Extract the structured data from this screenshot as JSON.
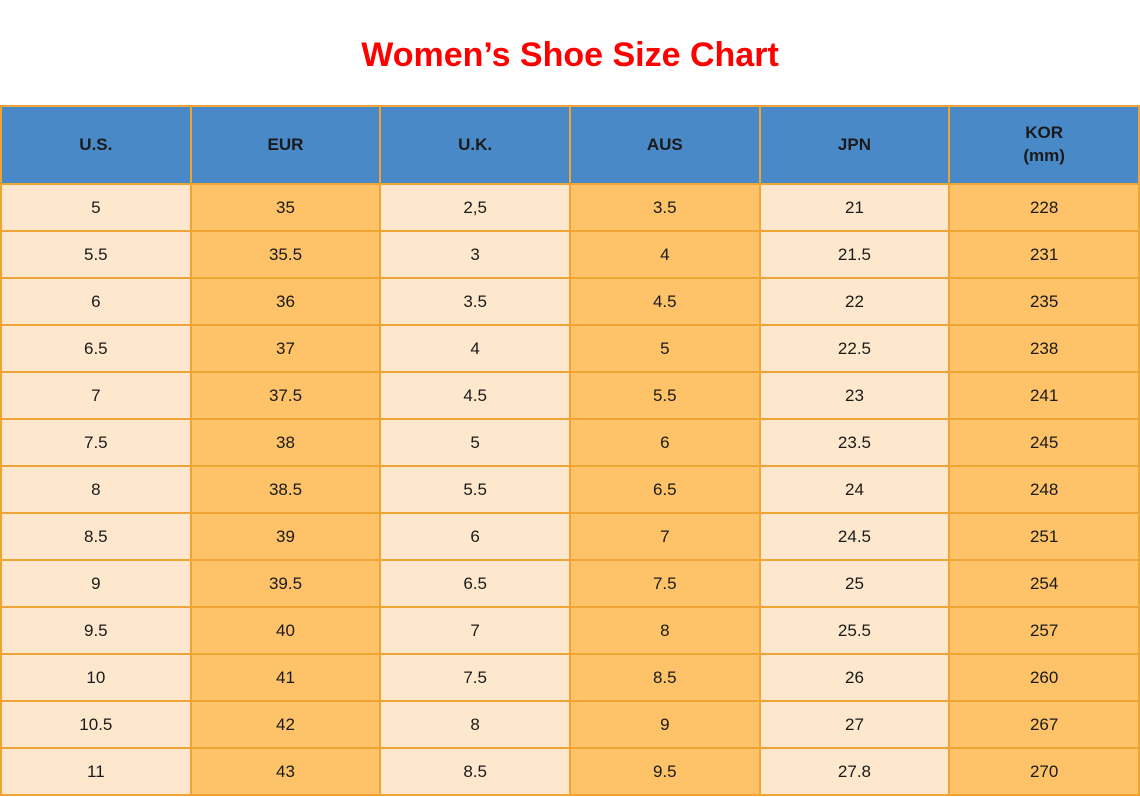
{
  "title": "Women’s Shoe Size Chart",
  "colors": {
    "title_red": "#FF0000",
    "header_blue": "#4A89C8",
    "border_orange": "#F0A434",
    "cell_cream": "#FDE8CD",
    "cell_orange": "#FEC269",
    "text": "#1A1A1A"
  },
  "chart_data": {
    "type": "table",
    "title": "Women’s Shoe Size Chart",
    "columns": [
      {
        "label": "U.S."
      },
      {
        "label": "EUR"
      },
      {
        "label": "U.K."
      },
      {
        "label": "AUS"
      },
      {
        "label": "JPN"
      },
      {
        "label": "KOR",
        "sublabel": "(mm)"
      }
    ],
    "rows": [
      [
        "5",
        "35",
        "2,5",
        "3.5",
        "21",
        "228"
      ],
      [
        "5.5",
        "35.5",
        "3",
        "4",
        "21.5",
        "231"
      ],
      [
        "6",
        "36",
        "3.5",
        "4.5",
        "22",
        "235"
      ],
      [
        "6.5",
        "37",
        "4",
        "5",
        "22.5",
        "238"
      ],
      [
        "7",
        "37.5",
        "4.5",
        "5.5",
        "23",
        "241"
      ],
      [
        "7.5",
        "38",
        "5",
        "6",
        "23.5",
        "245"
      ],
      [
        "8",
        "38.5",
        "5.5",
        "6.5",
        "24",
        "248"
      ],
      [
        "8.5",
        "39",
        "6",
        "7",
        "24.5",
        "251"
      ],
      [
        "9",
        "39.5",
        "6.5",
        "7.5",
        "25",
        "254"
      ],
      [
        "9.5",
        "40",
        "7",
        "8",
        "25.5",
        "257"
      ],
      [
        "10",
        "41",
        "7.5",
        "8.5",
        "26",
        "260"
      ],
      [
        "10.5",
        "42",
        "8",
        "9",
        "27",
        "267"
      ],
      [
        "11",
        "43",
        "8.5",
        "9.5",
        "27.8",
        "270"
      ]
    ]
  }
}
